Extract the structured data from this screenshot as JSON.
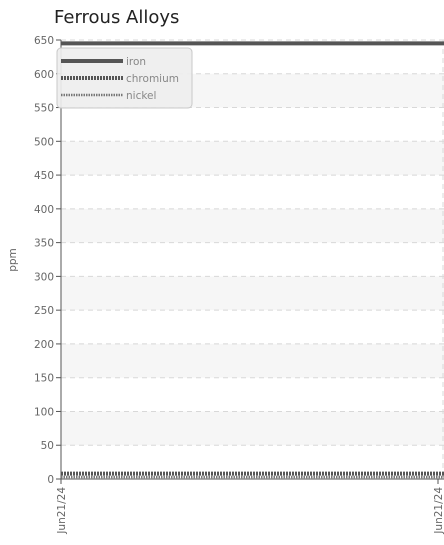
{
  "chart_data": {
    "type": "line",
    "title": "Ferrous Alloys",
    "xlabel": "",
    "ylabel": "ppm",
    "ylim": [
      0,
      650
    ],
    "y_ticks": [
      0,
      50,
      100,
      150,
      200,
      250,
      300,
      350,
      400,
      450,
      500,
      550,
      600,
      650
    ],
    "x_tick_labels": [
      "Jun21/24",
      "Jun21/24"
    ],
    "grid": true,
    "legend_position": "top-left",
    "series": [
      {
        "name": "iron",
        "values": [
          645,
          645
        ],
        "color": "#555555",
        "style": "solid"
      },
      {
        "name": "chromium",
        "values": [
          8,
          8
        ],
        "color": "#555555",
        "style": "dotted"
      },
      {
        "name": "nickel",
        "values": [
          3,
          3
        ],
        "color": "#777777",
        "style": "dotted-thin"
      }
    ]
  }
}
